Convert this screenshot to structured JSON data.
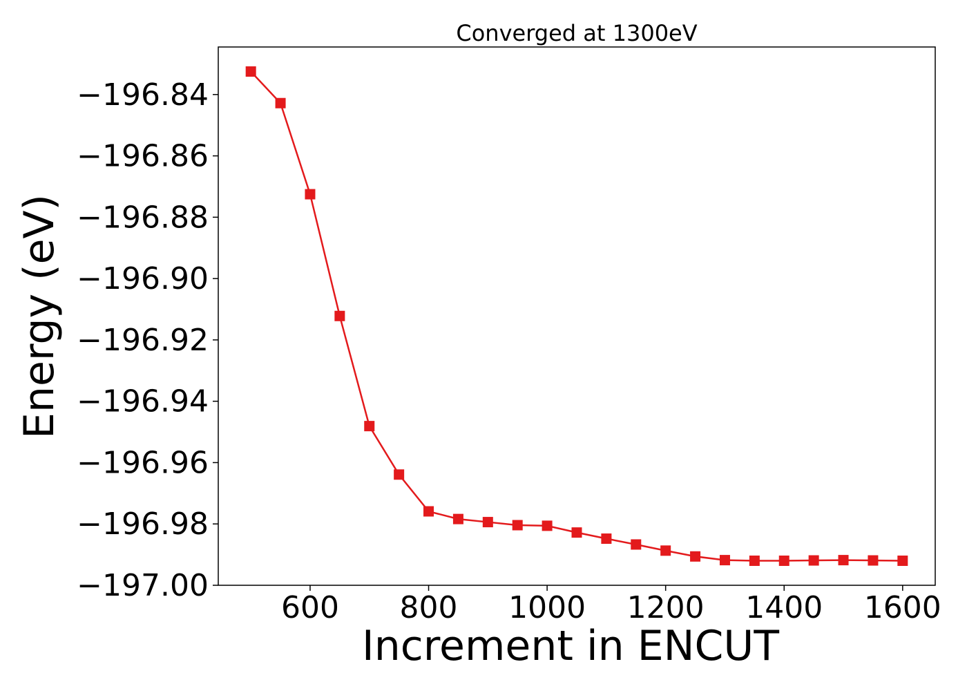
{
  "chart_data": {
    "type": "line",
    "title": "Converged at 1300eV",
    "xlabel": "Increment in ENCUT",
    "ylabel": "Energy (eV)",
    "xlim": [
      445,
      1655
    ],
    "ylim": [
      -197.0,
      -196.8245
    ],
    "xticks": [
      600,
      800,
      1000,
      1200,
      1400,
      1600
    ],
    "xtick_labels": [
      "600",
      "800",
      "1000",
      "1200",
      "1400",
      "1600"
    ],
    "yticks": [
      -196.84,
      -196.86,
      -196.88,
      -196.9,
      -196.92,
      -196.94,
      -196.96,
      -196.98,
      -197.0
    ],
    "ytick_labels": [
      "−196.84",
      "−196.86",
      "−196.88",
      "−196.90",
      "−196.92",
      "−196.94",
      "−196.96",
      "−196.98",
      "−197.00"
    ],
    "grid": false,
    "legend": null,
    "series": [
      {
        "color": "#e31a1c",
        "marker": "square",
        "x": [
          500,
          550,
          600,
          650,
          700,
          750,
          800,
          850,
          900,
          950,
          1000,
          1050,
          1100,
          1150,
          1200,
          1250,
          1300,
          1350,
          1400,
          1450,
          1500,
          1550,
          1600
        ],
        "y": [
          -196.8325,
          -196.8428,
          -196.8725,
          -196.9122,
          -196.9481,
          -196.9639,
          -196.9759,
          -196.9784,
          -196.9794,
          -196.9804,
          -196.9806,
          -196.9828,
          -196.9848,
          -196.9867,
          -196.9887,
          -196.9906,
          -196.9918,
          -196.992,
          -196.992,
          -196.9919,
          -196.9918,
          -196.9919,
          -196.992
        ]
      }
    ]
  }
}
